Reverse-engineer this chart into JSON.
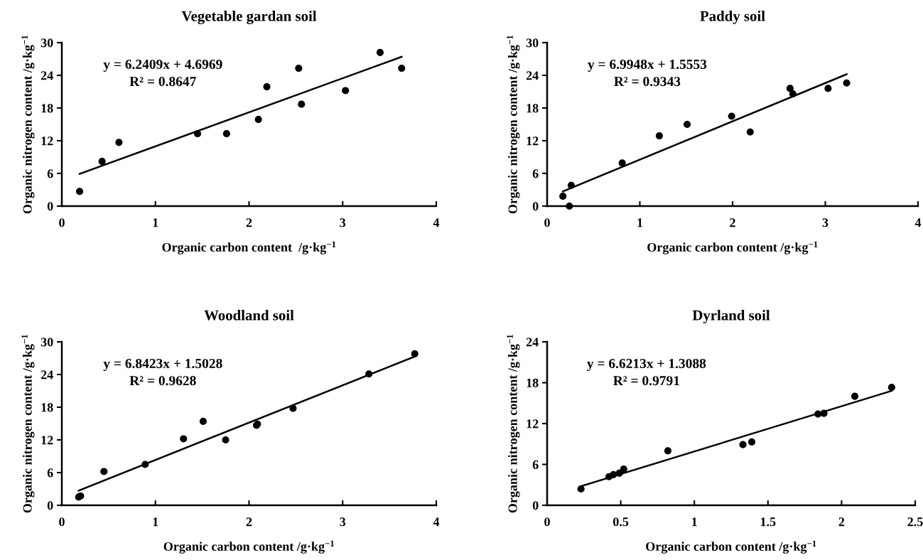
{
  "chart_data": [
    {
      "type": "scatter",
      "title": "Vegetable gardan soil",
      "xlabel": "Organic carbon content  /g·kg$^{−1}$",
      "ylabel": "Organic nitrogen content /g·kg$^{−1}$",
      "xlim": [
        0,
        4
      ],
      "xticks": [
        0,
        1,
        2,
        3,
        4
      ],
      "ylim": [
        0,
        30
      ],
      "yticks": [
        0,
        6,
        12,
        18,
        24,
        30
      ],
      "grid": false,
      "legend": false,
      "annotations": [
        "y = 6.2409x + 4.6969",
        "R² = 0.8647"
      ],
      "series": [
        {
          "marker": "circle",
          "color": "#000000",
          "x": [
            0.19,
            0.43,
            0.61,
            1.45,
            1.76,
            2.1,
            2.19,
            2.53,
            2.56,
            3.03,
            3.4,
            3.63
          ],
          "values": [
            2.7,
            8.2,
            11.7,
            13.3,
            13.3,
            15.9,
            21.9,
            25.3,
            18.7,
            21.2,
            28.2,
            25.3
          ]
        },
        {
          "type": "line",
          "marker": "none",
          "line_style": "solid",
          "color": "#000000",
          "x": [
            0.19,
            3.63
          ],
          "values": [
            5.9,
            27.4
          ]
        }
      ]
    },
    {
      "type": "scatter",
      "title": "Paddy soil",
      "xlabel": "Organic carbon content /g·kg$^{−1}$",
      "ylabel": "Organic nitrogen content /g·kg$^{−1}$",
      "xlim": [
        0,
        4
      ],
      "xticks": [
        0,
        1,
        2,
        3,
        4
      ],
      "ylim": [
        0,
        30
      ],
      "yticks": [
        0,
        6,
        12,
        18,
        24,
        30
      ],
      "grid": false,
      "legend": false,
      "annotations": [
        "y = 6.9948x + 1.5553",
        "R² = 0.9343"
      ],
      "series": [
        {
          "marker": "circle",
          "color": "#000000",
          "x": [
            0.17,
            0.24,
            0.26,
            0.81,
            1.21,
            1.51,
            1.99,
            2.19,
            2.62,
            2.65,
            3.03,
            3.23
          ],
          "values": [
            1.8,
            0,
            3.8,
            7.9,
            12.9,
            15.0,
            16.5,
            13.6,
            21.6,
            20.6,
            21.6,
            22.6
          ]
        },
        {
          "type": "line",
          "marker": "none",
          "line_style": "solid",
          "color": "#000000",
          "x": [
            0.17,
            3.23
          ],
          "values": [
            2.7,
            24.2
          ]
        }
      ]
    },
    {
      "type": "scatter",
      "title": "Woodland soil",
      "xlabel": "Organic carbon content /g·kg$^{−1}$",
      "ylabel": "Organic nitrogen content /g·kg$^{−1}$",
      "xlim": [
        0,
        4
      ],
      "xticks": [
        0,
        1,
        2,
        3,
        4
      ],
      "ylim": [
        0,
        30
      ],
      "yticks": [
        0,
        6,
        12,
        18,
        24,
        30
      ],
      "grid": false,
      "legend": false,
      "annotations": [
        "y = 6.8423x + 1.5028",
        "R² = 0.9628"
      ],
      "series": [
        {
          "marker": "circle",
          "color": "#000000",
          "x": [
            0.18,
            0.2,
            0.45,
            0.89,
            1.3,
            1.51,
            1.75,
            2.08,
            2.09,
            2.47,
            3.28,
            3.77
          ],
          "values": [
            1.5,
            1.7,
            6.2,
            7.5,
            12.2,
            15.4,
            12.0,
            14.7,
            14.9,
            17.8,
            24.1,
            27.8
          ]
        },
        {
          "type": "line",
          "marker": "none",
          "line_style": "solid",
          "color": "#000000",
          "x": [
            0.18,
            3.77
          ],
          "values": [
            2.7,
            27.3
          ]
        }
      ]
    },
    {
      "type": "scatter",
      "title": "Dyrland soil",
      "xlabel": "Organic carbon content /g·kg$^{−1}$",
      "ylabel": "Organic nitrogen content /g·kg$^{−1}$",
      "xlim": [
        0,
        2.5
      ],
      "xticks": [
        0,
        0.5,
        1,
        1.5,
        2,
        2.5
      ],
      "ylim": [
        0,
        24
      ],
      "yticks": [
        0,
        6,
        12,
        18,
        24
      ],
      "grid": false,
      "legend": false,
      "annotations": [
        "y = 6.6213x + 1.3088",
        "R² = 0.9791"
      ],
      "series": [
        {
          "marker": "circle",
          "color": "#000000",
          "x": [
            0.23,
            0.42,
            0.45,
            0.49,
            0.52,
            0.82,
            1.33,
            1.39,
            1.84,
            1.88,
            2.09,
            2.34
          ],
          "values": [
            2.4,
            4.2,
            4.5,
            4.7,
            5.3,
            8.0,
            8.9,
            9.3,
            13.4,
            13.5,
            16.0,
            17.3
          ]
        },
        {
          "type": "line",
          "marker": "none",
          "line_style": "solid",
          "color": "#000000",
          "x": [
            0.23,
            2.34
          ],
          "values": [
            2.8,
            16.8
          ]
        }
      ]
    }
  ]
}
